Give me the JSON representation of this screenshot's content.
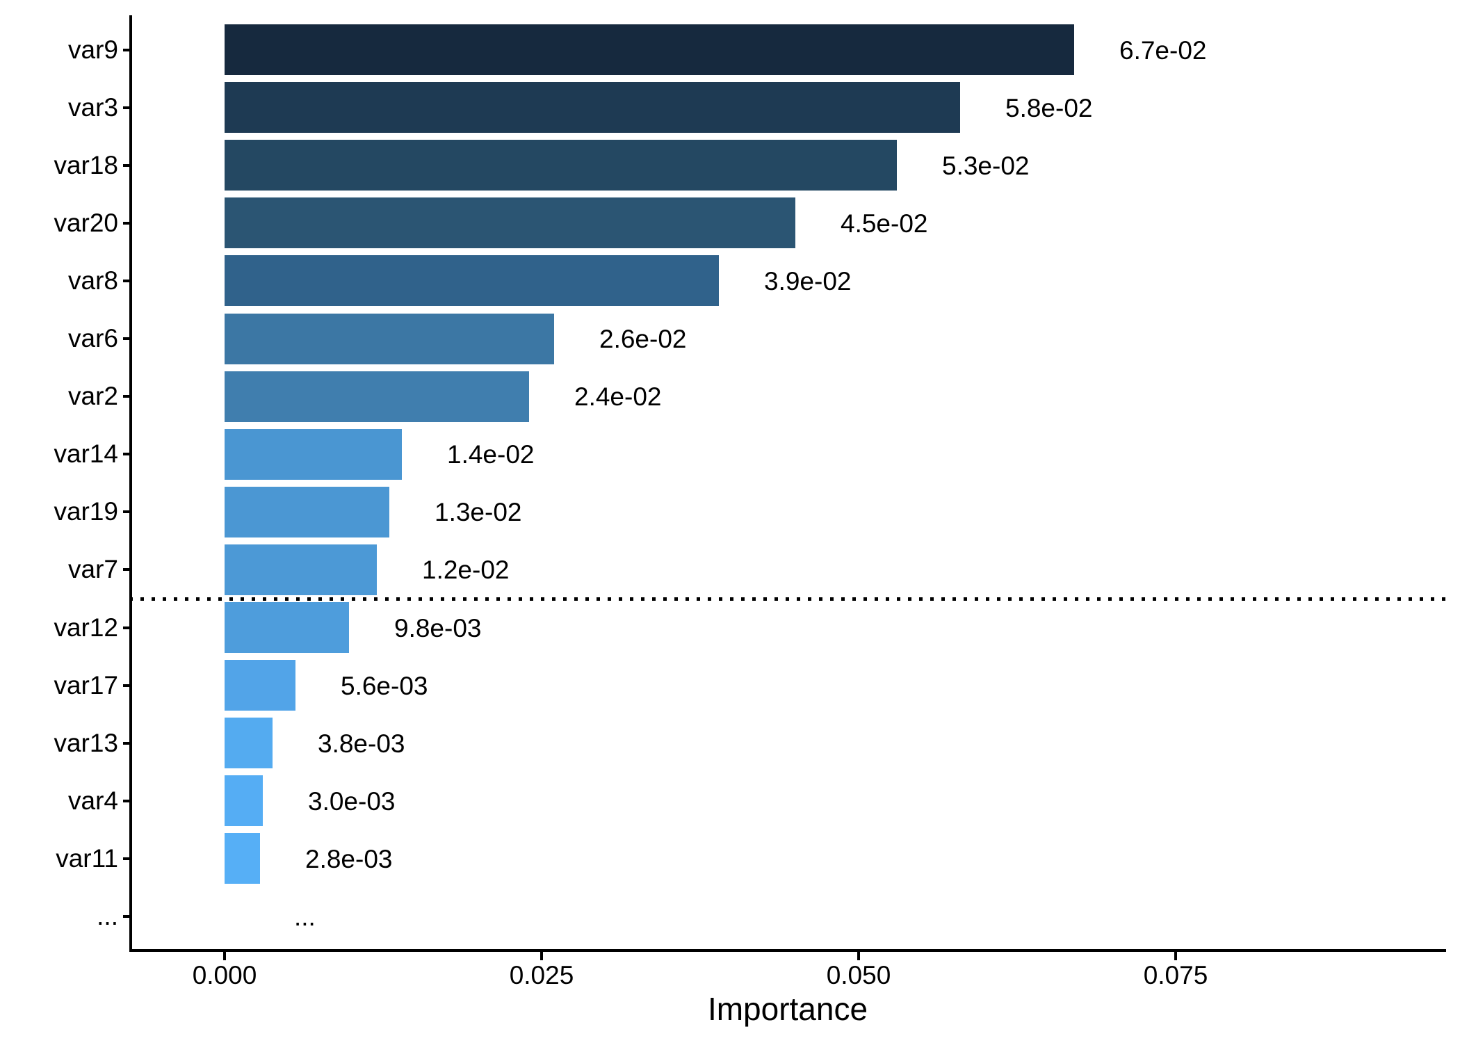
{
  "chart_data": {
    "type": "bar",
    "orientation": "horizontal",
    "title": "",
    "xlabel": "Importance",
    "ylabel": "",
    "x_ticks": [
      0.0,
      0.025,
      0.05,
      0.075
    ],
    "x_tick_labels": [
      "0.000",
      "0.025",
      "0.050",
      "0.075"
    ],
    "xlim": [
      -0.0075,
      0.0963
    ],
    "grid": false,
    "legend": false,
    "background_color": "#FFFFFF",
    "axis_color": "#000000",
    "text_color": "#000000",
    "cutoff_line": {
      "style": "dotted",
      "color": "#000000",
      "between_categories": [
        "var7",
        "var12"
      ]
    },
    "rows": [
      {
        "category": "var9",
        "value": 0.067,
        "value_label": "6.7e-02",
        "color": "#16293E"
      },
      {
        "category": "var3",
        "value": 0.058,
        "value_label": "5.8e-02",
        "color": "#1E3A53"
      },
      {
        "category": "var18",
        "value": 0.053,
        "value_label": "5.3e-02",
        "color": "#244862"
      },
      {
        "category": "var20",
        "value": 0.045,
        "value_label": "4.5e-02",
        "color": "#2B5573"
      },
      {
        "category": "var8",
        "value": 0.039,
        "value_label": "3.9e-02",
        "color": "#30628B"
      },
      {
        "category": "var6",
        "value": 0.026,
        "value_label": "2.6e-02",
        "color": "#3C77A4"
      },
      {
        "category": "var2",
        "value": 0.024,
        "value_label": "2.4e-02",
        "color": "#407EAE"
      },
      {
        "category": "var14",
        "value": 0.014,
        "value_label": "1.4e-02",
        "color": "#4A96D2"
      },
      {
        "category": "var19",
        "value": 0.013,
        "value_label": "1.3e-02",
        "color": "#4B97D3"
      },
      {
        "category": "var7",
        "value": 0.012,
        "value_label": "1.2e-02",
        "color": "#4C99D6"
      },
      {
        "category": "var12",
        "value": 0.0098,
        "value_label": "9.8e-03",
        "color": "#4E9DDC"
      },
      {
        "category": "var17",
        "value": 0.0056,
        "value_label": "5.6e-03",
        "color": "#52A4E8"
      },
      {
        "category": "var13",
        "value": 0.0038,
        "value_label": "3.8e-03",
        "color": "#54ABF0"
      },
      {
        "category": "var4",
        "value": 0.003,
        "value_label": "3.0e-03",
        "color": "#55ADF4"
      },
      {
        "category": "var11",
        "value": 0.0028,
        "value_label": "2.8e-03",
        "color": "#56AFF6"
      },
      {
        "category": "...",
        "value": null,
        "value_label": "...",
        "color": null
      }
    ]
  }
}
